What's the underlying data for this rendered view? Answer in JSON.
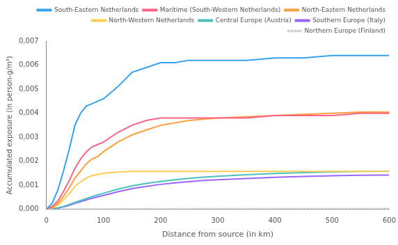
{
  "chart_data": {
    "type": "line",
    "xlabel": "Distance from source (in km)",
    "ylabel": "Accumulated exposure (in person-g/m³)",
    "x": [
      0,
      10,
      20,
      30,
      40,
      50,
      60,
      70,
      80,
      90,
      100,
      125,
      150,
      175,
      200,
      225,
      250,
      275,
      300,
      350,
      400,
      450,
      500,
      550,
      600
    ],
    "xlim": [
      0,
      600
    ],
    "xticks": [
      0,
      100,
      200,
      300,
      400,
      500,
      600
    ],
    "ylim": [
      0,
      0.007
    ],
    "yticks": [
      {
        "value": 0.0,
        "label": "0,000"
      },
      {
        "value": 0.001,
        "label": "0,001"
      },
      {
        "value": 0.002,
        "label": "0,002"
      },
      {
        "value": 0.003,
        "label": "0,003"
      },
      {
        "value": 0.004,
        "label": "0,004"
      },
      {
        "value": 0.005,
        "label": "0,005"
      },
      {
        "value": 0.006,
        "label": "0,006"
      },
      {
        "value": 0.007,
        "label": "0,007"
      }
    ],
    "grid": false,
    "legend": "upper right",
    "series": [
      {
        "name": "South-Eastern Netherlands",
        "line_style": "solid",
        "values": [
          0.0,
          0.00025,
          0.0008,
          0.0016,
          0.0025,
          0.0035,
          0.004,
          0.0043,
          0.0044,
          0.0045,
          0.0046,
          0.0051,
          0.0057,
          0.0059,
          0.0061,
          0.0061,
          0.0062,
          0.0062,
          0.0062,
          0.0062,
          0.0063,
          0.0063,
          0.0064,
          0.0064,
          0.0064
        ]
      },
      {
        "name": "Maritime (South-Western Netherlands)",
        "line_style": "solid",
        "values": [
          0.0,
          0.00012,
          0.00035,
          0.00075,
          0.0012,
          0.0017,
          0.0021,
          0.0024,
          0.0026,
          0.0027,
          0.0028,
          0.0032,
          0.0035,
          0.0037,
          0.0038,
          0.0038,
          0.0038,
          0.0038,
          0.0038,
          0.0038,
          0.0039,
          0.0039,
          0.0039,
          0.004,
          0.004
        ]
      },
      {
        "name": "North-Eastern Netherlands",
        "line_style": "solid",
        "values": [
          0.0,
          8e-05,
          0.00025,
          0.00055,
          0.0009,
          0.0013,
          0.0016,
          0.0019,
          0.0021,
          0.0022,
          0.0024,
          0.0028,
          0.0031,
          0.0033,
          0.0035,
          0.0036,
          0.0037,
          0.00375,
          0.0038,
          0.00385,
          0.0039,
          0.00395,
          0.004,
          0.00405,
          0.00405
        ]
      },
      {
        "name": "North-Western Netherlands",
        "line_style": "solid",
        "values": [
          0.0,
          6e-05,
          0.00018,
          0.0004,
          0.00065,
          0.00095,
          0.00115,
          0.0013,
          0.0014,
          0.00145,
          0.0015,
          0.00155,
          0.00158,
          0.00158,
          0.00158,
          0.00158,
          0.00158,
          0.00158,
          0.00158,
          0.00158,
          0.00158,
          0.00158,
          0.00158,
          0.00158,
          0.00158
        ]
      },
      {
        "name": "Central Europe (Austria)",
        "line_style": "solid",
        "values": [
          0.0,
          2e-05,
          6e-05,
          0.00012,
          0.0002,
          0.00029,
          0.00037,
          0.00045,
          0.00053,
          0.0006,
          0.00067,
          0.00084,
          0.00098,
          0.00108,
          0.00116,
          0.00123,
          0.00129,
          0.00134,
          0.00138,
          0.00144,
          0.00149,
          0.00153,
          0.00156,
          0.00158,
          0.00159
        ]
      },
      {
        "name": "Southern Europe (Italy)",
        "line_style": "solid",
        "values": [
          0.0,
          1.5e-05,
          5e-05,
          0.0001,
          0.00017,
          0.00025,
          0.00032,
          0.00039,
          0.00046,
          0.00052,
          0.00058,
          0.00073,
          0.00086,
          0.00096,
          0.00104,
          0.0011,
          0.00115,
          0.0012,
          0.00123,
          0.00128,
          0.00133,
          0.00137,
          0.0014,
          0.00142,
          0.00143
        ]
      },
      {
        "name": "Northern Europe (Finland)",
        "line_style": "dotted",
        "values": [
          0.0,
          8e-07,
          2e-06,
          3.8e-06,
          5.8e-06,
          8e-06,
          1e-05,
          1.2e-05,
          1.38e-05,
          1.55e-05,
          1.7e-05,
          2.1e-05,
          2.45e-05,
          2.75e-05,
          3e-05,
          3.2e-05,
          3.38e-05,
          3.54e-05,
          3.68e-05,
          3.92e-05,
          4.12e-05,
          4.3e-05,
          4.45e-05,
          4.58e-05,
          4.68e-05
        ]
      }
    ]
  }
}
